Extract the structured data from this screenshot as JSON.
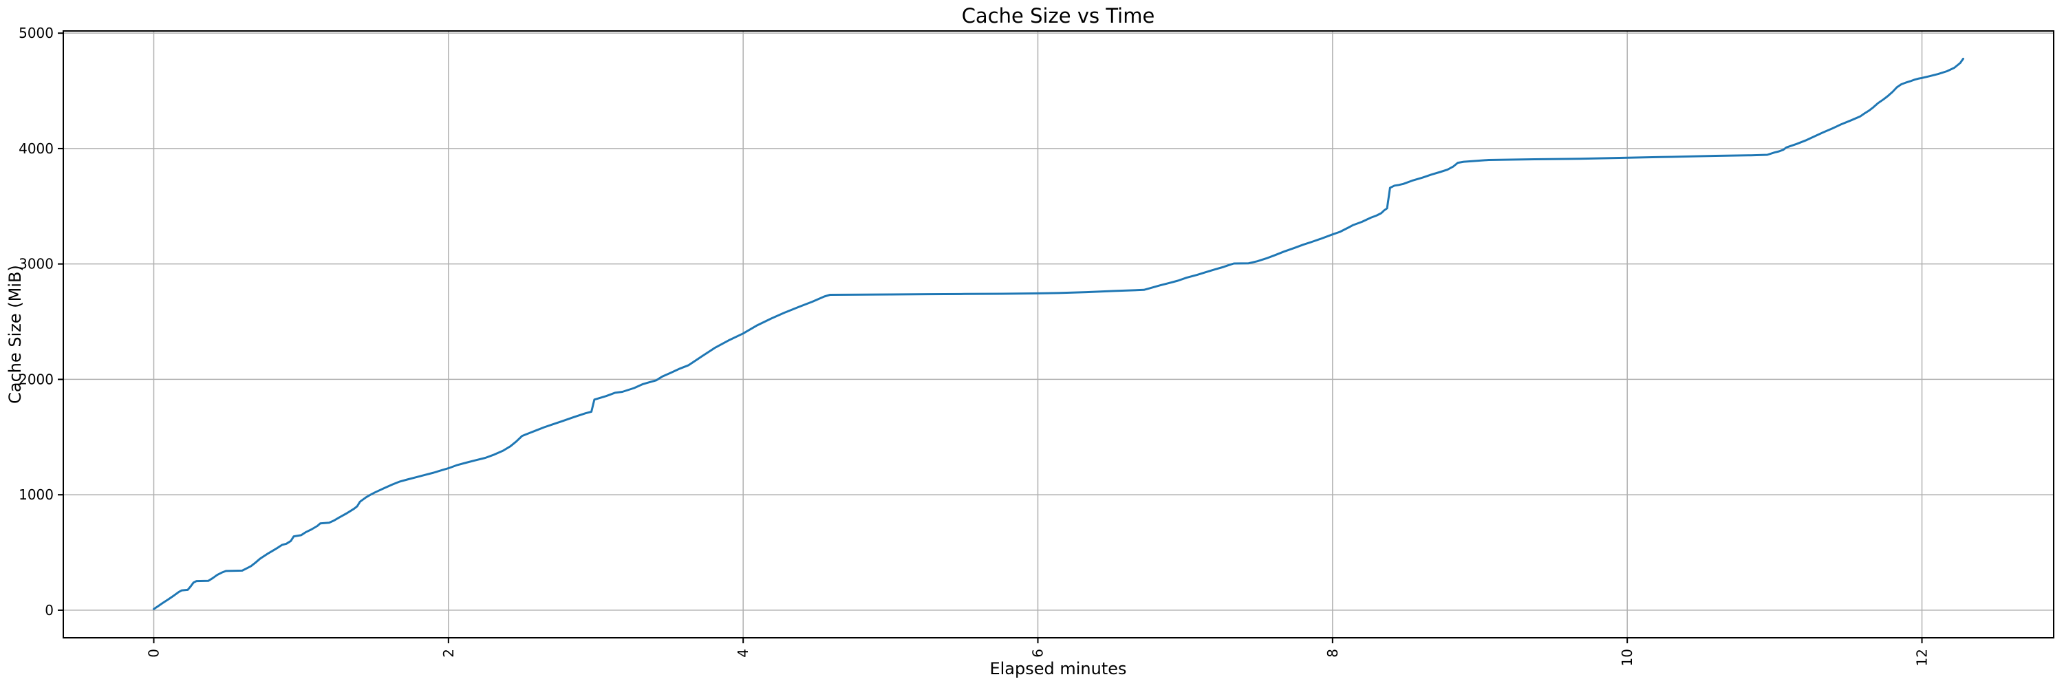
{
  "figure": {
    "title": "Cache Size vs Time",
    "xlabel": "Elapsed minutes",
    "ylabel": "Cache Size (MiB)"
  },
  "chart_data": {
    "type": "line",
    "title": "Cache Size vs Time",
    "xlabel": "Elapsed minutes",
    "ylabel": "Cache Size (MiB)",
    "x_tick_labels": [
      "0",
      "2",
      "4",
      "6",
      "8",
      "10",
      "12"
    ],
    "x_ticks": [
      0,
      2,
      4,
      6,
      8,
      10,
      12
    ],
    "y_tick_labels": [
      "0",
      "1000",
      "2000",
      "3000",
      "4000",
      "5000"
    ],
    "y_ticks": [
      0,
      1000,
      2000,
      3000,
      4000,
      5000
    ],
    "xlim": [
      -0.614,
      12.894
    ],
    "ylim": [
      -239,
      5019
    ],
    "grid": true,
    "legend_position": "none",
    "x_tick_rotation_deg": 90,
    "colors": {
      "line": "#1f77b4",
      "grid": "#b0b0b0",
      "spine": "#000000",
      "text": "#000000",
      "background": "#ffffff"
    },
    "series": [
      {
        "name": "cache_size_mib",
        "points": [
          [
            0.0,
            10
          ],
          [
            0.03,
            35
          ],
          [
            0.06,
            62
          ],
          [
            0.1,
            95
          ],
          [
            0.14,
            130
          ],
          [
            0.17,
            158
          ],
          [
            0.19,
            172
          ],
          [
            0.23,
            176
          ],
          [
            0.25,
            205
          ],
          [
            0.27,
            240
          ],
          [
            0.29,
            252
          ],
          [
            0.37,
            254
          ],
          [
            0.4,
            278
          ],
          [
            0.43,
            305
          ],
          [
            0.46,
            325
          ],
          [
            0.49,
            340
          ],
          [
            0.6,
            343
          ],
          [
            0.63,
            362
          ],
          [
            0.66,
            382
          ],
          [
            0.69,
            412
          ],
          [
            0.72,
            445
          ],
          [
            0.77,
            487
          ],
          [
            0.8,
            510
          ],
          [
            0.84,
            540
          ],
          [
            0.87,
            565
          ],
          [
            0.9,
            576
          ],
          [
            0.93,
            600
          ],
          [
            0.95,
            640
          ],
          [
            1.0,
            650
          ],
          [
            1.03,
            675
          ],
          [
            1.07,
            700
          ],
          [
            1.11,
            730
          ],
          [
            1.13,
            752
          ],
          [
            1.19,
            758
          ],
          [
            1.22,
            775
          ],
          [
            1.26,
            805
          ],
          [
            1.31,
            840
          ],
          [
            1.36,
            880
          ],
          [
            1.38,
            900
          ],
          [
            1.4,
            940
          ],
          [
            1.44,
            978
          ],
          [
            1.47,
            1000
          ],
          [
            1.5,
            1020
          ],
          [
            1.56,
            1055
          ],
          [
            1.62,
            1090
          ],
          [
            1.67,
            1115
          ],
          [
            1.72,
            1132
          ],
          [
            1.78,
            1152
          ],
          [
            1.84,
            1172
          ],
          [
            1.9,
            1192
          ],
          [
            1.96,
            1215
          ],
          [
            2.0,
            1230
          ],
          [
            2.06,
            1258
          ],
          [
            2.12,
            1278
          ],
          [
            2.18,
            1298
          ],
          [
            2.25,
            1320
          ],
          [
            2.31,
            1348
          ],
          [
            2.37,
            1382
          ],
          [
            2.42,
            1420
          ],
          [
            2.46,
            1462
          ],
          [
            2.5,
            1510
          ],
          [
            2.55,
            1535
          ],
          [
            2.6,
            1560
          ],
          [
            2.65,
            1585
          ],
          [
            2.7,
            1607
          ],
          [
            2.77,
            1637
          ],
          [
            2.85,
            1673
          ],
          [
            2.93,
            1706
          ],
          [
            2.97,
            1720
          ],
          [
            2.99,
            1825
          ],
          [
            3.07,
            1855
          ],
          [
            3.13,
            1884
          ],
          [
            3.18,
            1892
          ],
          [
            3.26,
            1925
          ],
          [
            3.32,
            1959
          ],
          [
            3.36,
            1974
          ],
          [
            3.41,
            1992
          ],
          [
            3.45,
            2024
          ],
          [
            3.51,
            2058
          ],
          [
            3.57,
            2093
          ],
          [
            3.63,
            2123
          ],
          [
            3.72,
            2200
          ],
          [
            3.81,
            2275
          ],
          [
            3.9,
            2337
          ],
          [
            4.0,
            2398
          ],
          [
            4.09,
            2465
          ],
          [
            4.19,
            2527
          ],
          [
            4.28,
            2578
          ],
          [
            4.38,
            2629
          ],
          [
            4.47,
            2673
          ],
          [
            4.55,
            2718
          ],
          [
            4.59,
            2733
          ],
          [
            4.8,
            2734
          ],
          [
            5.0,
            2736
          ],
          [
            5.25,
            2738
          ],
          [
            5.5,
            2740
          ],
          [
            5.75,
            2742
          ],
          [
            5.96,
            2745
          ],
          [
            6.14,
            2748
          ],
          [
            6.33,
            2756
          ],
          [
            6.52,
            2766
          ],
          [
            6.72,
            2776
          ],
          [
            6.76,
            2790
          ],
          [
            6.83,
            2815
          ],
          [
            6.89,
            2835
          ],
          [
            6.95,
            2855
          ],
          [
            7.01,
            2881
          ],
          [
            7.08,
            2905
          ],
          [
            7.14,
            2929
          ],
          [
            7.2,
            2952
          ],
          [
            7.26,
            2974
          ],
          [
            7.31,
            2996
          ],
          [
            7.33,
            3004
          ],
          [
            7.43,
            3006
          ],
          [
            7.49,
            3024
          ],
          [
            7.55,
            3048
          ],
          [
            7.61,
            3077
          ],
          [
            7.67,
            3107
          ],
          [
            7.74,
            3139
          ],
          [
            7.8,
            3167
          ],
          [
            7.86,
            3192
          ],
          [
            7.92,
            3218
          ],
          [
            8.0,
            3256
          ],
          [
            8.05,
            3278
          ],
          [
            8.11,
            3317
          ],
          [
            8.14,
            3337
          ],
          [
            8.2,
            3365
          ],
          [
            8.26,
            3401
          ],
          [
            8.3,
            3421
          ],
          [
            8.33,
            3440
          ],
          [
            8.35,
            3464
          ],
          [
            8.37,
            3482
          ],
          [
            8.39,
            3660
          ],
          [
            8.42,
            3679
          ],
          [
            8.45,
            3685
          ],
          [
            8.48,
            3694
          ],
          [
            8.54,
            3722
          ],
          [
            8.61,
            3748
          ],
          [
            8.67,
            3774
          ],
          [
            8.73,
            3797
          ],
          [
            8.78,
            3817
          ],
          [
            8.82,
            3845
          ],
          [
            8.85,
            3877
          ],
          [
            8.89,
            3886
          ],
          [
            9.06,
            3901
          ],
          [
            9.37,
            3907
          ],
          [
            9.68,
            3912
          ],
          [
            10.0,
            3921
          ],
          [
            10.3,
            3928
          ],
          [
            10.6,
            3937
          ],
          [
            10.84,
            3942
          ],
          [
            10.95,
            3946
          ],
          [
            11.0,
            3966
          ],
          [
            11.03,
            3976
          ],
          [
            11.06,
            3990
          ],
          [
            11.08,
            4010
          ],
          [
            11.15,
            4040
          ],
          [
            11.21,
            4070
          ],
          [
            11.27,
            4105
          ],
          [
            11.33,
            4140
          ],
          [
            11.39,
            4173
          ],
          [
            11.45,
            4209
          ],
          [
            11.52,
            4245
          ],
          [
            11.58,
            4278
          ],
          [
            11.61,
            4304
          ],
          [
            11.64,
            4328
          ],
          [
            11.67,
            4358
          ],
          [
            11.7,
            4392
          ],
          [
            11.74,
            4427
          ],
          [
            11.77,
            4457
          ],
          [
            11.8,
            4491
          ],
          [
            11.83,
            4531
          ],
          [
            11.86,
            4557
          ],
          [
            11.89,
            4571
          ],
          [
            11.92,
            4583
          ],
          [
            11.95,
            4597
          ],
          [
            11.98,
            4607
          ],
          [
            12.0,
            4612
          ],
          [
            12.05,
            4627
          ],
          [
            12.11,
            4646
          ],
          [
            12.17,
            4670
          ],
          [
            12.22,
            4700
          ],
          [
            12.26,
            4742
          ],
          [
            12.28,
            4778
          ]
        ]
      }
    ]
  }
}
